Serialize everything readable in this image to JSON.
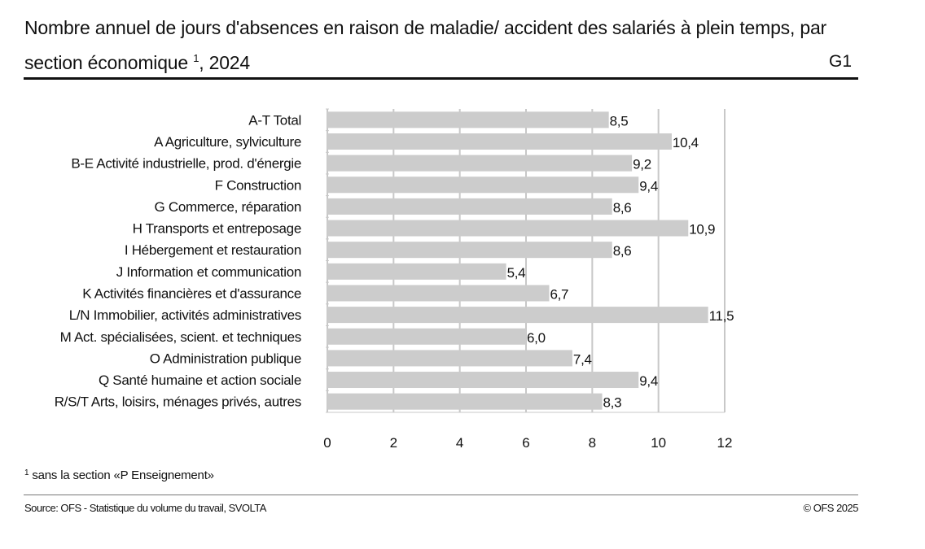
{
  "header": {
    "title_main": "Nombre annuel de jours d'absences en raison de maladie/ accident des salariés à plein temps, par section économique",
    "title_sup": "1",
    "title_year": ", 2024",
    "graph_id": "G1"
  },
  "footer": {
    "footnote_sup": "1",
    "footnote": "sans la section «P Enseignement»",
    "source": "Source: OFS - Statistique du volume du travail, SVOLTA",
    "copyright": "© OFS 2025"
  },
  "chart_data": {
    "type": "bar",
    "orientation": "horizontal",
    "title": "Nombre annuel de jours d'absences en raison de maladie/ accident des salariés à plein temps, par section économique 1, 2024",
    "xlabel": "",
    "ylabel": "",
    "xlim": [
      0,
      12
    ],
    "xticks": [
      0,
      2,
      4,
      6,
      8,
      10,
      12
    ],
    "grid": true,
    "legend": "none",
    "bar_color": "#cccccc",
    "grid_color": "#c8c8c8",
    "categories": [
      "A-T Total",
      "A Agriculture, sylviculture",
      "B-E Activité industrielle, prod. d'énergie",
      "F Construction",
      "G Commerce, réparation",
      "H Transports et entreposage",
      "I Hébergement et restauration",
      "J Information et communication",
      "K Activités financières et d'assurance",
      "L/N Immobilier, activités administratives",
      "M Act. spécialisées, scient. et techniques",
      "O Administration publique",
      "Q Santé humaine et action sociale",
      "R/S/T Arts, loisirs, ménages privés, autres"
    ],
    "values": [
      8.5,
      10.4,
      9.2,
      9.4,
      8.6,
      10.9,
      8.6,
      5.4,
      6.7,
      11.5,
      6.0,
      7.4,
      9.4,
      8.3
    ],
    "value_labels": [
      "8,5",
      "10,4",
      "9,2",
      "9,4",
      "8,6",
      "10,9",
      "8,6",
      "5,4",
      "6,7",
      "11,5",
      "6,0",
      "7,4",
      "9,4",
      "8,3"
    ]
  }
}
